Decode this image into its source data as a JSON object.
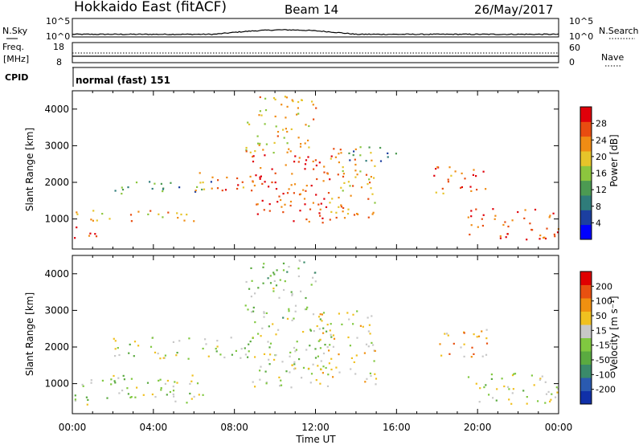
{
  "header": {
    "station": "Hokkaido East (fitACF)",
    "beam": "Beam 14",
    "date": "26/May/2017"
  },
  "summary_panels": {
    "nsky_label": "N.Sky",
    "nsky_ticks": [
      "10^5",
      "10^0"
    ],
    "nsearch_label": "N.Search",
    "nsearch_ticks": [
      "10^5",
      "10^0"
    ],
    "freq_label_line1": "Freq.",
    "freq_label_line2": "[MHz]",
    "freq_ticks": [
      "18",
      "8"
    ],
    "nave_label": "Nave",
    "nave_ticks": [
      "60",
      "0"
    ],
    "cpid_label": "CPID",
    "cpid_text": "normal (fast) 151"
  },
  "chart_data": [
    {
      "type": "heatmap",
      "panel": "power",
      "xlabel": "",
      "ylabel": "Slant Range [km]",
      "xlim": [
        0,
        24
      ],
      "ylim": [
        180,
        4500
      ],
      "yticks": [
        "1000",
        "2000",
        "3000",
        "4000"
      ],
      "xticks": [
        "00:00",
        "04:00",
        "08:00",
        "12:00",
        "16:00",
        "20:00",
        "00:00"
      ],
      "colorbar": {
        "label": "Power [dB]",
        "ticks": [
          "28",
          "24",
          "20",
          "16",
          "12",
          "8",
          "4"
        ],
        "colors": [
          "#0000ff",
          "#1c3fa0",
          "#2f7c7a",
          "#4c9a52",
          "#8cc63e",
          "#e6c42a",
          "#f08c14",
          "#e84c10",
          "#e0000a"
        ]
      },
      "bands": [
        {
          "t0": 0.0,
          "t1": 1.6,
          "r0": 450,
          "r1": 800,
          "level": 0.9
        },
        {
          "t0": 0.0,
          "t1": 6.5,
          "r0": 950,
          "r1": 1250,
          "level": 0.7
        },
        {
          "t0": 2.0,
          "t1": 7.0,
          "r0": 1700,
          "r1": 2050,
          "level": 0.35
        },
        {
          "t0": 5.5,
          "t1": 9.0,
          "r0": 1800,
          "r1": 2300,
          "level": 0.75
        },
        {
          "t0": 8.8,
          "t1": 12.8,
          "r0": 900,
          "r1": 2800,
          "level": 0.85
        },
        {
          "t0": 8.5,
          "t1": 12.0,
          "r0": 2800,
          "r1": 4400,
          "level": 0.65
        },
        {
          "t0": 12.0,
          "t1": 15.0,
          "r0": 1000,
          "r1": 3000,
          "level": 0.7
        },
        {
          "t0": 13.5,
          "t1": 16.2,
          "r0": 2600,
          "r1": 3000,
          "level": 0.3
        },
        {
          "t0": 17.8,
          "t1": 20.5,
          "r0": 1700,
          "r1": 2500,
          "level": 0.8
        },
        {
          "t0": 19.5,
          "t1": 24.0,
          "r0": 450,
          "r1": 1300,
          "level": 0.85
        }
      ]
    },
    {
      "type": "heatmap",
      "panel": "velocity",
      "xlabel": "Time UT",
      "ylabel": "Slant Range [km]",
      "xlim": [
        0,
        24
      ],
      "ylim": [
        180,
        4500
      ],
      "yticks": [
        "1000",
        "2000",
        "3000",
        "4000"
      ],
      "xticks": [
        "00:00",
        "04:00",
        "08:00",
        "12:00",
        "16:00",
        "20:00",
        "00:00"
      ],
      "colorbar": {
        "label": "Velocity [m s⁻¹]",
        "ticks": [
          "200",
          "100",
          "50",
          "15",
          "-15",
          "-50",
          "-100",
          "-200"
        ],
        "colors": [
          "#1030a8",
          "#2a5ab0",
          "#3a8a6a",
          "#5aaa40",
          "#80c840",
          "#c8c8c8",
          "#f0c020",
          "#f09010",
          "#e85010",
          "#e00000"
        ]
      },
      "bands": [
        {
          "t0": 0.0,
          "t1": 6.5,
          "r0": 450,
          "r1": 1250,
          "level": 0.5
        },
        {
          "t0": 2.0,
          "t1": 9.0,
          "r0": 1700,
          "r1": 2300,
          "level": 0.5
        },
        {
          "t0": 8.8,
          "t1": 12.8,
          "r0": 900,
          "r1": 2800,
          "level": 0.5
        },
        {
          "t0": 8.5,
          "t1": 12.0,
          "r0": 2800,
          "r1": 4400,
          "level": 0.45
        },
        {
          "t0": 12.0,
          "t1": 15.0,
          "r0": 1000,
          "r1": 3000,
          "level": 0.6
        },
        {
          "t0": 17.8,
          "t1": 20.5,
          "r0": 1700,
          "r1": 2500,
          "level": 0.7
        },
        {
          "t0": 19.5,
          "t1": 24.0,
          "r0": 450,
          "r1": 1300,
          "level": 0.5
        }
      ]
    }
  ]
}
